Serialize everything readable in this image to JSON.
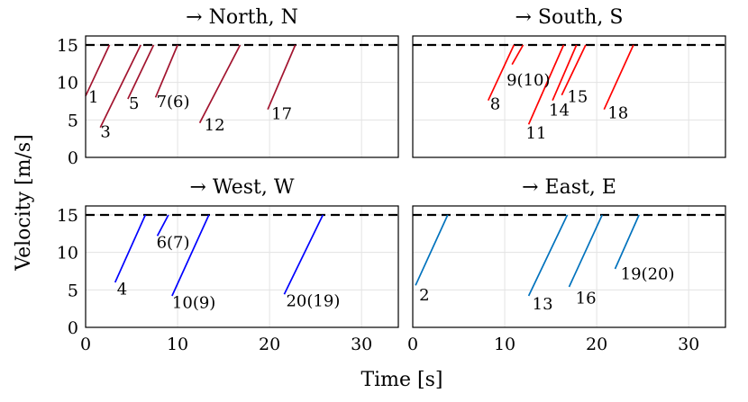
{
  "chart_data": [
    {
      "type": "line",
      "title": "→ North, N",
      "color": "#a2142f",
      "xlim": [
        0,
        34
      ],
      "ylim": [
        0,
        16.2
      ],
      "xticks": [
        0,
        10,
        20,
        30
      ],
      "yticks": [
        0,
        5,
        10,
        15
      ],
      "reference_line": 15,
      "series": [
        {
          "name": "1",
          "x": [
            0,
            2.6
          ],
          "y": [
            8.2,
            15
          ]
        },
        {
          "name": "3",
          "x": [
            1.6,
            6.0
          ],
          "y": [
            4.0,
            15
          ]
        },
        {
          "name": "5",
          "x": [
            4.6,
            7.4
          ],
          "y": [
            7.8,
            15
          ]
        },
        {
          "name": "7(6)",
          "x": [
            7.6,
            10.0
          ],
          "y": [
            8.0,
            15
          ]
        },
        {
          "name": "12",
          "x": [
            12.4,
            16.8
          ],
          "y": [
            4.6,
            15
          ]
        },
        {
          "name": "17",
          "x": [
            19.8,
            22.8
          ],
          "y": [
            6.4,
            15
          ]
        }
      ],
      "labels": [
        {
          "text": "1",
          "x": 0.3,
          "y": 7.3
        },
        {
          "text": "3",
          "x": 1.6,
          "y": 2.7
        },
        {
          "text": "5",
          "x": 4.7,
          "y": 6.5
        },
        {
          "text": "7(6)",
          "x": 7.7,
          "y": 6.7
        },
        {
          "text": "12",
          "x": 12.9,
          "y": 3.6
        },
        {
          "text": "17",
          "x": 20.2,
          "y": 5.1
        }
      ]
    },
    {
      "type": "line",
      "title": "→ South, S",
      "color": "#ff0000",
      "xlim": [
        0,
        34
      ],
      "ylim": [
        0,
        16.2
      ],
      "xticks": [
        0,
        10,
        20,
        30
      ],
      "yticks": [
        0,
        5,
        10,
        15
      ],
      "reference_line": 15,
      "series": [
        {
          "name": "8",
          "x": [
            8.2,
            11.0
          ],
          "y": [
            7.6,
            15
          ]
        },
        {
          "name": "9(10)",
          "x": [
            10.8,
            12.0
          ],
          "y": [
            12.4,
            15
          ]
        },
        {
          "name": "11",
          "x": [
            12.6,
            16.4
          ],
          "y": [
            4.4,
            15
          ]
        },
        {
          "name": "14",
          "x": [
            15.2,
            17.8
          ],
          "y": [
            7.6,
            15
          ]
        },
        {
          "name": "15",
          "x": [
            16.2,
            18.8
          ],
          "y": [
            8.3,
            15
          ]
        },
        {
          "name": "18",
          "x": [
            20.8,
            24.0
          ],
          "y": [
            6.4,
            15
          ]
        }
      ],
      "labels": [
        {
          "text": "8",
          "x": 8.4,
          "y": 6.4
        },
        {
          "text": "9(10)",
          "x": 10.2,
          "y": 9.6
        },
        {
          "text": "11",
          "x": 12.3,
          "y": 2.5
        },
        {
          "text": "14",
          "x": 14.8,
          "y": 5.6
        },
        {
          "text": "15",
          "x": 16.8,
          "y": 7.4
        },
        {
          "text": "18",
          "x": 21.2,
          "y": 5.2
        }
      ]
    },
    {
      "type": "line",
      "title": "→ West, W",
      "color": "#0000ff",
      "xlim": [
        0,
        34
      ],
      "ylim": [
        0,
        16.2
      ],
      "xticks": [
        0,
        10,
        20,
        30
      ],
      "yticks": [
        0,
        5,
        10,
        15
      ],
      "reference_line": 15,
      "series": [
        {
          "name": "4",
          "x": [
            3.2,
            6.5
          ],
          "y": [
            6.0,
            15
          ]
        },
        {
          "name": "6(7)",
          "x": [
            7.8,
            9.0
          ],
          "y": [
            12.2,
            15
          ]
        },
        {
          "name": "10(9)",
          "x": [
            9.4,
            13.4
          ],
          "y": [
            4.2,
            15
          ]
        },
        {
          "name": "20(19)",
          "x": [
            21.6,
            25.8
          ],
          "y": [
            4.4,
            15
          ]
        }
      ],
      "labels": [
        {
          "text": "4",
          "x": 3.4,
          "y": 4.4
        },
        {
          "text": "6(7)",
          "x": 7.7,
          "y": 10.6
        },
        {
          "text": "10(9)",
          "x": 9.4,
          "y": 2.6
        },
        {
          "text": "20(19)",
          "x": 21.8,
          "y": 2.8
        }
      ]
    },
    {
      "type": "line",
      "title": "→ East, E",
      "color": "#0072bd",
      "xlim": [
        0,
        34
      ],
      "ylim": [
        0,
        16.2
      ],
      "xticks": [
        0,
        10,
        20,
        30
      ],
      "yticks": [
        0,
        5,
        10,
        15
      ],
      "reference_line": 15,
      "series": [
        {
          "name": "2",
          "x": [
            0.3,
            3.8
          ],
          "y": [
            5.6,
            15
          ]
        },
        {
          "name": "13",
          "x": [
            12.6,
            16.8
          ],
          "y": [
            4.2,
            15
          ]
        },
        {
          "name": "16",
          "x": [
            17.0,
            20.6
          ],
          "y": [
            5.4,
            15
          ]
        },
        {
          "name": "19(20)",
          "x": [
            22.0,
            24.6
          ],
          "y": [
            7.8,
            15
          ]
        }
      ],
      "labels": [
        {
          "text": "2",
          "x": 0.7,
          "y": 3.6
        },
        {
          "text": "13",
          "x": 13.0,
          "y": 2.4
        },
        {
          "text": "16",
          "x": 17.7,
          "y": 3.2
        },
        {
          "text": "19(20)",
          "x": 22.6,
          "y": 6.4
        }
      ]
    }
  ],
  "shared": {
    "xlabel": "Time [s]",
    "ylabel": "Velocity [m/s]"
  }
}
